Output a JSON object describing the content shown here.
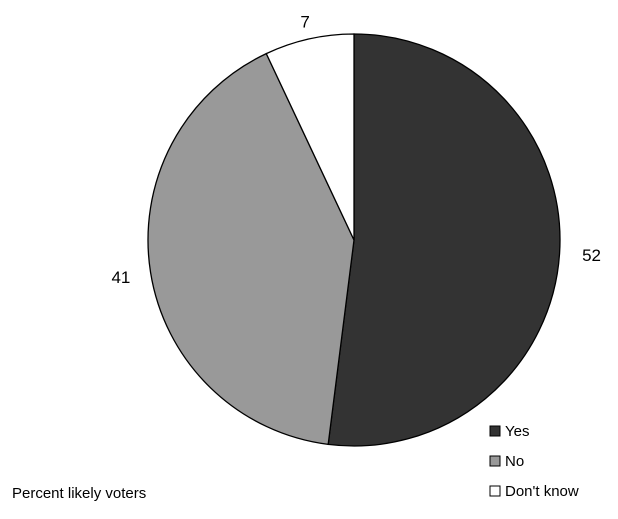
{
  "chart_data": {
    "type": "pie",
    "categories": [
      "Yes",
      "No",
      "Don't know"
    ],
    "values": [
      52,
      41,
      7
    ],
    "colors": [
      "#333333",
      "#999999",
      "#ffffff"
    ],
    "data_labels": [
      "52",
      "41",
      "7"
    ],
    "note": "Percent likely voters",
    "legend_position": "bottom-right"
  }
}
